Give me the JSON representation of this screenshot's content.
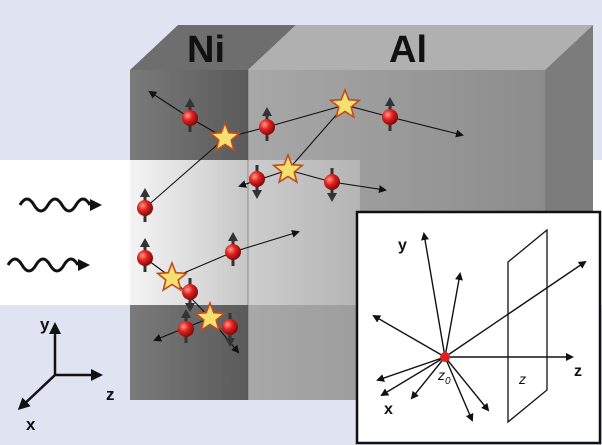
{
  "figure": {
    "materials": {
      "left": "Ni",
      "right": "Al"
    },
    "main_axes": {
      "y": "y",
      "z": "z",
      "x": "x"
    },
    "inset": {
      "axis_y": "y",
      "axis_z": "z",
      "axis_x": "x",
      "source_label": "z",
      "source_subscript": "0",
      "plane_label": "z"
    },
    "colors": {
      "background_band": "#dfe3f2",
      "ni_block": "#5f5f5f",
      "al_block": "#9a9a9a",
      "electron": "#d11a1a",
      "star": "#f3e06e",
      "star_outline": "#c24c1e"
    }
  }
}
